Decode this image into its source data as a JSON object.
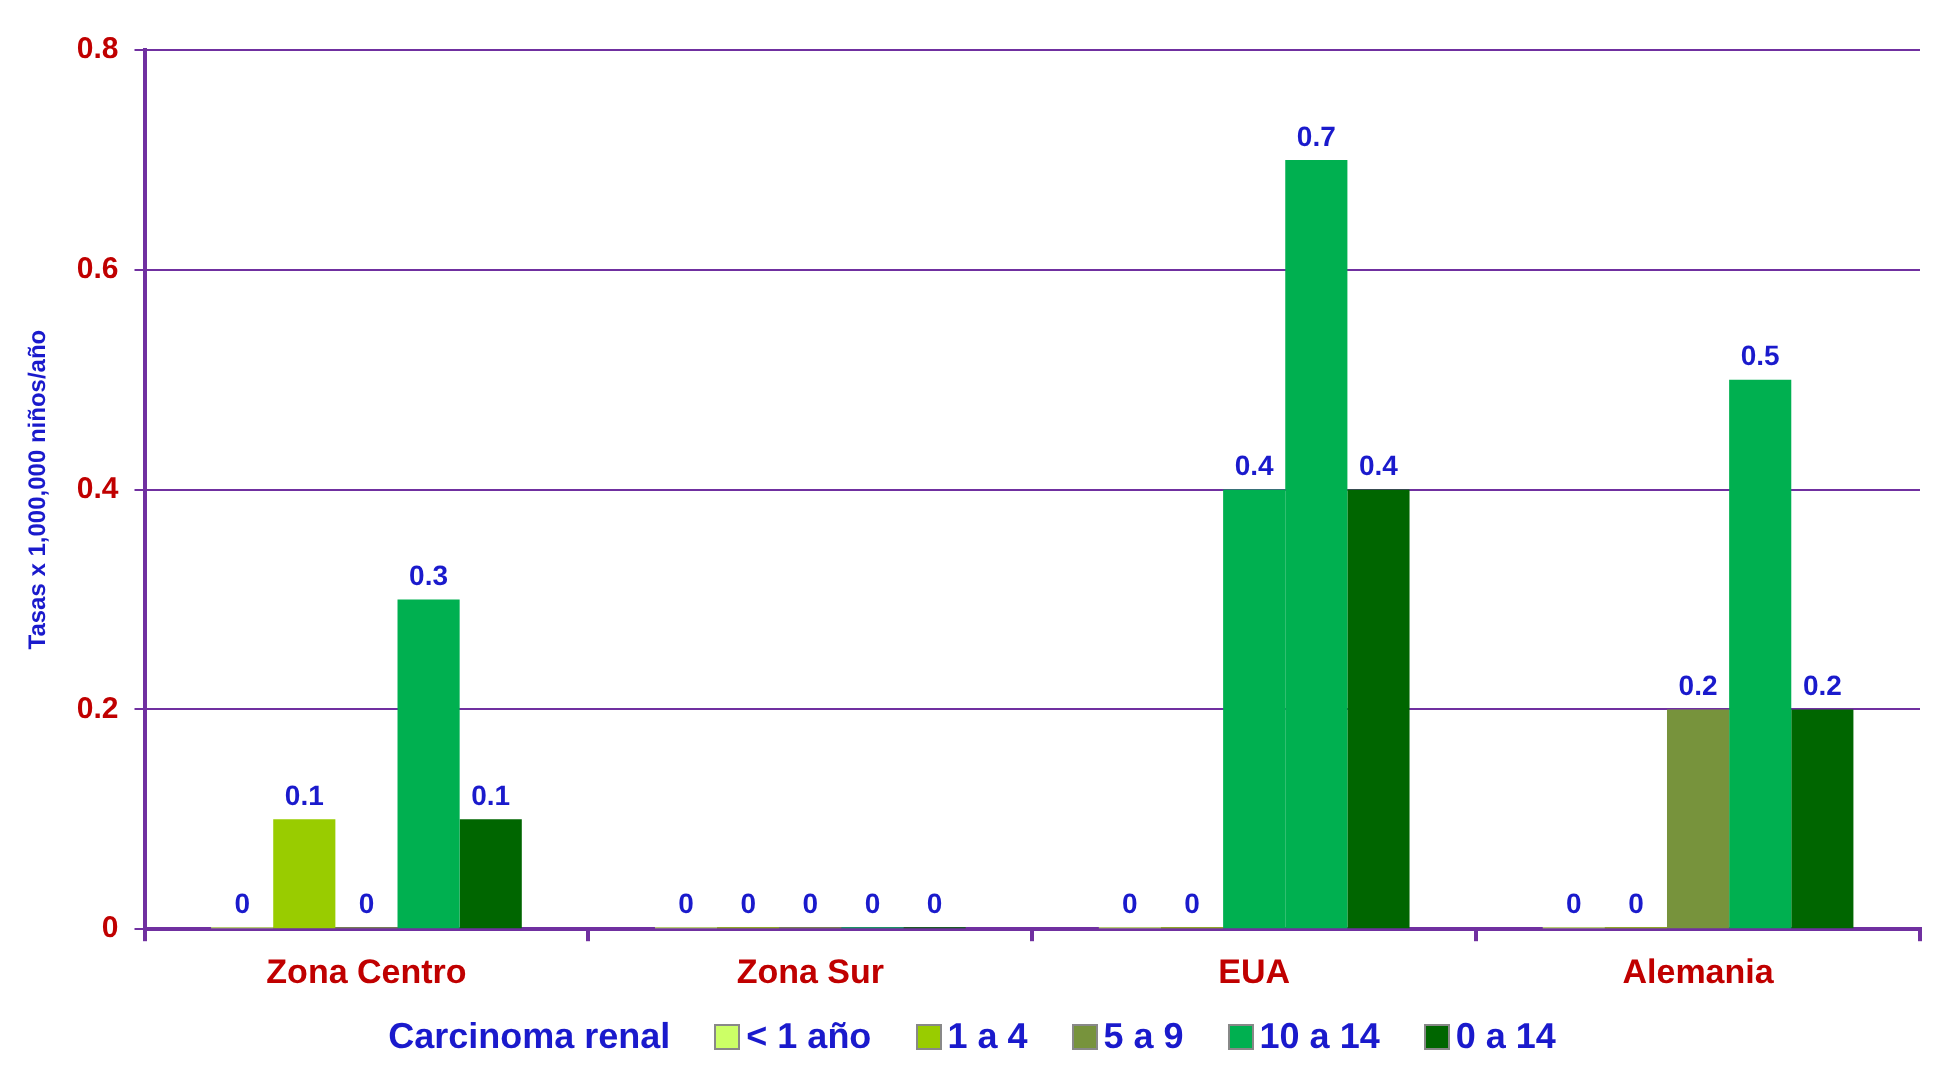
{
  "chart_data": {
    "type": "bar",
    "ylabel": "Tasas x 1,000,000 niños/año",
    "legend_title": "Carcinoma renal",
    "categories": [
      "Zona Centro",
      "Zona Sur",
      "EUA",
      "Alemania"
    ],
    "series": [
      {
        "name": "< 1 año",
        "color": "#ccff66",
        "values": [
          0,
          0,
          0,
          0
        ]
      },
      {
        "name": "1 a 4",
        "color": "#99cc00",
        "values": [
          0.1,
          0,
          0,
          0
        ]
      },
      {
        "name": "5 a 9",
        "color": "#77933c",
        "colors": [
          "#77933c",
          "#77933c",
          "#00b050",
          "#77933c"
        ],
        "values": [
          0,
          0,
          0.4,
          0.2
        ]
      },
      {
        "name": "10 a 14",
        "color": "#00b050",
        "values": [
          0.3,
          0,
          0.7,
          0.5
        ]
      },
      {
        "name": "0 a 14",
        "color": "#006600",
        "values": [
          0.1,
          0,
          0.4,
          0.2
        ]
      }
    ],
    "ylim": [
      0,
      0.8
    ],
    "yticks": [
      0,
      0.2,
      0.4,
      0.6,
      0.8
    ],
    "grid": "y",
    "legend": "bottom",
    "data_labels": true
  }
}
